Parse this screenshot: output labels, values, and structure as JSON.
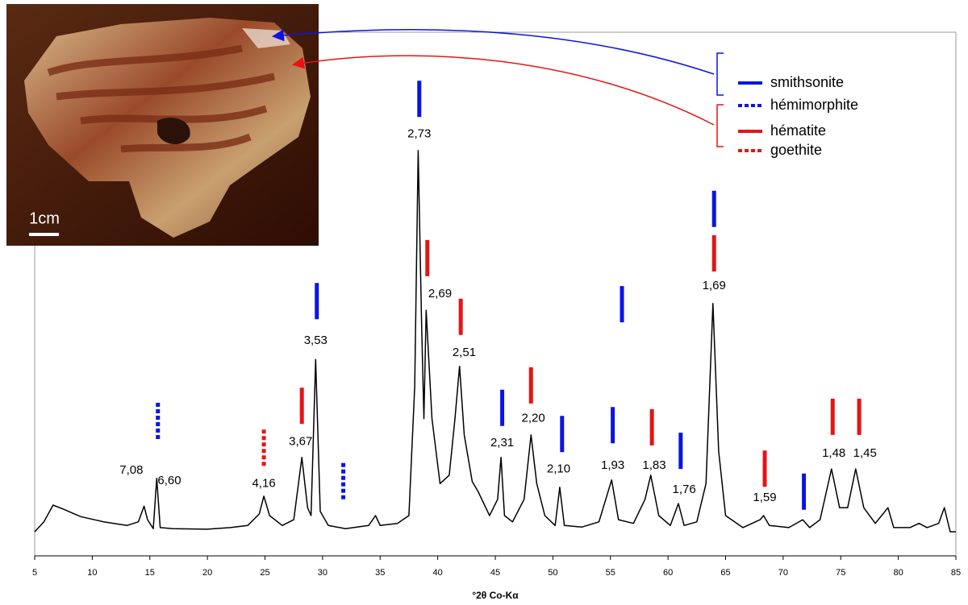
{
  "chart_data": {
    "type": "line",
    "xlabel": "°2θ Co-Kα",
    "x": [
      5,
      5.8,
      6.6,
      7.5,
      9,
      11,
      13,
      14,
      14.5,
      14.8,
      15.3,
      15.6,
      15.9,
      17,
      20,
      22,
      23.5,
      24.5,
      24.9,
      25.4,
      26.5,
      27.5,
      28.2,
      28.7,
      29,
      29.4,
      29.8,
      30.5,
      32,
      34,
      34.6,
      35,
      36.5,
      37.5,
      38.0,
      38.3,
      38.6,
      38.8,
      39.0,
      39.5,
      40.2,
      41,
      41.5,
      41.9,
      42.3,
      43,
      43.5,
      44.5,
      45.2,
      45.5,
      45.8,
      46.5,
      47.5,
      48.1,
      48.6,
      49.3,
      50.2,
      50.6,
      51,
      52.5,
      54,
      55.1,
      55.7,
      57,
      58,
      58.5,
      59.2,
      60.2,
      60.9,
      61.4,
      62.5,
      63.3,
      63.9,
      64.4,
      65,
      66.5,
      68,
      68.3,
      68.8,
      70.5,
      71.7,
      72.3,
      73.2,
      74.2,
      74.9,
      75.6,
      76.3,
      77,
      78,
      79.1,
      79.6,
      81,
      81.8,
      82.5,
      83.5,
      84.0,
      84.5,
      85
    ],
    "values": [
      4.6,
      6.5,
      9.7,
      8.9,
      7.5,
      6.5,
      5.8,
      6.5,
      9.5,
      6.9,
      5.2,
      14.8,
      5.4,
      5.2,
      5.1,
      5.4,
      5.8,
      8.0,
      11.4,
      7.7,
      5.8,
      6.9,
      18.8,
      9.2,
      7.7,
      37.5,
      8.5,
      5.8,
      5.2,
      5.8,
      7.7,
      5.8,
      6.2,
      7.7,
      32.3,
      77.4,
      44.6,
      26.2,
      46.9,
      26.2,
      13.8,
      15.4,
      26.2,
      36.2,
      23.1,
      14.2,
      12.3,
      7.7,
      10.8,
      18.8,
      7.7,
      6.5,
      10.8,
      23.1,
      13.8,
      7.7,
      5.8,
      13.1,
      5.8,
      5.5,
      6.5,
      14.5,
      6.9,
      6.2,
      10.8,
      15.4,
      7.7,
      5.8,
      10.0,
      5.8,
      6.5,
      13.8,
      48.2,
      20.0,
      7.7,
      5.4,
      6.9,
      7.7,
      5.8,
      5.4,
      6.9,
      5.4,
      6.9,
      16.6,
      9.2,
      9.2,
      16.6,
      9.2,
      6.2,
      9.2,
      5.4,
      5.4,
      6.2,
      5.4,
      6.2,
      9.2,
      4.6,
      4.6
    ],
    "color": "#000000",
    "xlim": [
      5,
      85
    ],
    "xticks": [
      5,
      10,
      15,
      20,
      25,
      30,
      35,
      40,
      45,
      50,
      55,
      60,
      65,
      70,
      75,
      80,
      85
    ],
    "ylim": [
      0,
      100
    ],
    "phases": [
      {
        "name": "smithsonite",
        "color": "#0a14e6",
        "dashed": false
      },
      {
        "name": "hémimorphite",
        "color": "#0a14e6",
        "dashed": true
      },
      {
        "name": "hématite",
        "color": "#e61414",
        "dashed": false
      },
      {
        "name": "goethite",
        "color": "#e61414",
        "dashed": true
      }
    ],
    "phase_marks": [
      {
        "phase": 0,
        "x": 38.4,
        "y": 83.8
      },
      {
        "phase": 0,
        "x": 29.5,
        "y": 45.2
      },
      {
        "phase": 0,
        "x": 45.6,
        "y": 24.8
      },
      {
        "phase": 0,
        "x": 50.8,
        "y": 19.8
      },
      {
        "phase": 0,
        "x": 55.2,
        "y": 21.5
      },
      {
        "phase": 0,
        "x": 56.0,
        "y": 44.6
      },
      {
        "phase": 0,
        "x": 61.1,
        "y": 16.6
      },
      {
        "phase": 0,
        "x": 64.0,
        "y": 62.8
      },
      {
        "phase": 0,
        "x": 71.8,
        "y": 8.8
      },
      {
        "phase": 1,
        "x": 15.7,
        "y": 22.3
      },
      {
        "phase": 1,
        "x": 31.8,
        "y": 10.8
      },
      {
        "phase": 2,
        "x": 28.2,
        "y": 25.2
      },
      {
        "phase": 2,
        "x": 39.1,
        "y": 53.4
      },
      {
        "phase": 2,
        "x": 42.0,
        "y": 42.2
      },
      {
        "phase": 2,
        "x": 48.1,
        "y": 29.1
      },
      {
        "phase": 2,
        "x": 58.6,
        "y": 21.1
      },
      {
        "phase": 2,
        "x": 64.0,
        "y": 54.3
      },
      {
        "phase": 2,
        "x": 68.4,
        "y": 13.2
      },
      {
        "phase": 2,
        "x": 74.3,
        "y": 23.1
      },
      {
        "phase": 2,
        "x": 76.6,
        "y": 23.1
      },
      {
        "phase": 3,
        "x": 24.9,
        "y": 17.2
      }
    ],
    "annotations": [
      {
        "label": "7,08",
        "x": 13.4,
        "y": 16.3
      },
      {
        "label": "6,60",
        "x": 16.7,
        "y": 14.3
      },
      {
        "label": "4,16",
        "x": 24.9,
        "y": 13.8
      },
      {
        "label": "3,67",
        "x": 28.1,
        "y": 21.8
      },
      {
        "label": "3,53",
        "x": 29.4,
        "y": 41.1
      },
      {
        "label": "2,73",
        "x": 38.4,
        "y": 80.5
      },
      {
        "label": "2,69",
        "x": 40.2,
        "y": 50.0
      },
      {
        "label": "2,51",
        "x": 42.3,
        "y": 38.8
      },
      {
        "label": "2,31",
        "x": 45.6,
        "y": 21.5
      },
      {
        "label": "2,20",
        "x": 48.3,
        "y": 26.2
      },
      {
        "label": "2,10",
        "x": 50.5,
        "y": 16.5
      },
      {
        "label": "1,93",
        "x": 55.2,
        "y": 17.2
      },
      {
        "label": "1,83",
        "x": 58.8,
        "y": 17.2
      },
      {
        "label": "1,76",
        "x": 61.4,
        "y": 12.6
      },
      {
        "label": "1,69",
        "x": 64.0,
        "y": 51.5
      },
      {
        "label": "1,59",
        "x": 68.4,
        "y": 11.1
      },
      {
        "label": "1,48",
        "x": 74.4,
        "y": 19.5
      },
      {
        "label": "1,45",
        "x": 77.1,
        "y": 19.5
      }
    ]
  },
  "photo": {
    "scale_label": "1cm"
  }
}
